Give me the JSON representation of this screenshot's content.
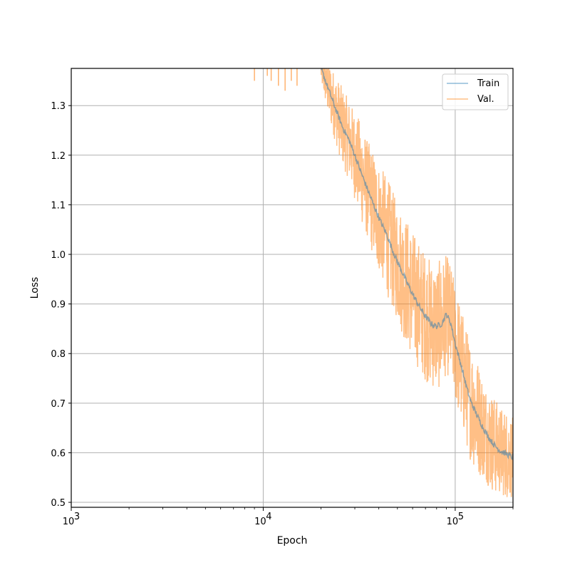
{
  "chart_data": {
    "type": "line",
    "xlabel": "Epoch",
    "ylabel": "Loss",
    "xscale": "log",
    "xlim": [
      1000,
      200000
    ],
    "ylim": [
      0.49,
      1.375
    ],
    "x_ticks": [
      1000,
      10000,
      100000
    ],
    "x_tick_labels": [
      {
        "base": "10",
        "exp": "3"
      },
      {
        "base": "10",
        "exp": "4"
      },
      {
        "base": "10",
        "exp": "5"
      }
    ],
    "y_ticks": [
      0.5,
      0.6,
      0.7,
      0.8,
      0.9,
      1.0,
      1.1,
      1.2,
      1.3
    ],
    "y_tick_labels": [
      "0.5",
      "0.6",
      "0.7",
      "0.8",
      "0.9",
      "1.0",
      "1.1",
      "1.2",
      "1.3"
    ],
    "grid": true,
    "legend_position": "top-right",
    "series": [
      {
        "name": "Train",
        "color": "#1f77b4",
        "opacity": 0.5,
        "x": [
          20000,
          22000,
          24000,
          26000,
          28000,
          30000,
          32000,
          35000,
          38000,
          41000,
          44000,
          47000,
          50000,
          55000,
          60000,
          65000,
          70000,
          75000,
          80000,
          85000,
          90000,
          95000,
          100000,
          105000,
          110000,
          115000,
          120000,
          130000,
          140000,
          150000,
          160000,
          170000,
          180000,
          190000,
          200000
        ],
        "values": [
          1.375,
          1.33,
          1.29,
          1.255,
          1.23,
          1.2,
          1.17,
          1.13,
          1.095,
          1.065,
          1.04,
          1.01,
          0.985,
          0.95,
          0.92,
          0.895,
          0.875,
          0.86,
          0.855,
          0.86,
          0.88,
          0.86,
          0.82,
          0.79,
          0.76,
          0.73,
          0.705,
          0.675,
          0.65,
          0.63,
          0.615,
          0.605,
          0.6,
          0.595,
          0.59
        ]
      },
      {
        "name": "Val.",
        "color": "#ff7f0e",
        "opacity": 0.5,
        "x": [
          20000,
          22000,
          24000,
          26000,
          28000,
          30000,
          32000,
          35000,
          38000,
          41000,
          44000,
          47000,
          50000,
          55000,
          60000,
          65000,
          70000,
          75000,
          80000,
          85000,
          90000,
          95000,
          100000,
          105000,
          110000,
          115000,
          120000,
          130000,
          140000,
          150000,
          160000,
          170000,
          180000,
          190000,
          200000
        ],
        "values": [
          1.375,
          1.33,
          1.29,
          1.255,
          1.23,
          1.2,
          1.17,
          1.13,
          1.095,
          1.065,
          1.04,
          1.01,
          0.985,
          0.95,
          0.92,
          0.895,
          0.875,
          0.86,
          0.855,
          0.86,
          0.88,
          0.86,
          0.82,
          0.79,
          0.76,
          0.73,
          0.705,
          0.675,
          0.65,
          0.63,
          0.615,
          0.605,
          0.6,
          0.595,
          0.59
        ],
        "spread": [
          0.03,
          0.06,
          0.07,
          0.08,
          0.08,
          0.09,
          0.1,
          0.1,
          0.11,
          0.11,
          0.12,
          0.12,
          0.12,
          0.13,
          0.13,
          0.13,
          0.13,
          0.13,
          0.13,
          0.13,
          0.12,
          0.12,
          0.12,
          0.12,
          0.12,
          0.12,
          0.12,
          0.12,
          0.1,
          0.1,
          0.1,
          0.09,
          0.09,
          0.09,
          0.08
        ],
        "early_spikes": [
          [
            9000,
            1.35
          ],
          [
            10500,
            1.36
          ],
          [
            11000,
            1.35
          ],
          [
            12000,
            1.34
          ],
          [
            13000,
            1.33
          ],
          [
            14000,
            1.35
          ],
          [
            15000,
            1.34
          ]
        ]
      }
    ]
  }
}
